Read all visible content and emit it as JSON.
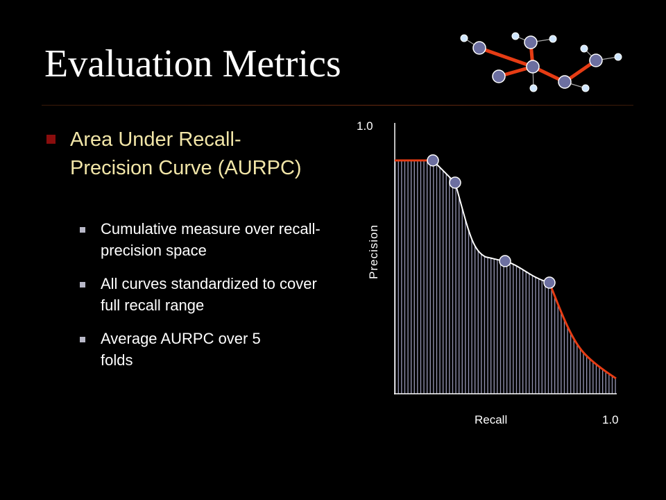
{
  "slide": {
    "title": "Evaluation Metrics",
    "bullet": "Area Under Recall-Precision Curve (AURPC)",
    "sub_bullets": [
      "Cumulative measure over recall-precision space",
      "All curves standardized to cover full recall range",
      "Average AURPC over 5 folds"
    ]
  },
  "diagram": {
    "y_max_label": "1.0",
    "y_axis_label": "Precision",
    "x_axis_label": "Recall",
    "x_max_label": "1.0"
  },
  "colors": {
    "background": "#000000",
    "title": "#ffffff",
    "bullet_text": "#f2e6a8",
    "bullet_marker": "#8a0d0d",
    "curve_extension": "#e63c14",
    "node_fill": "#6c6fa0",
    "leaf_fill": "#cfe6ff"
  },
  "icons": [
    "network-graph-icon"
  ]
}
